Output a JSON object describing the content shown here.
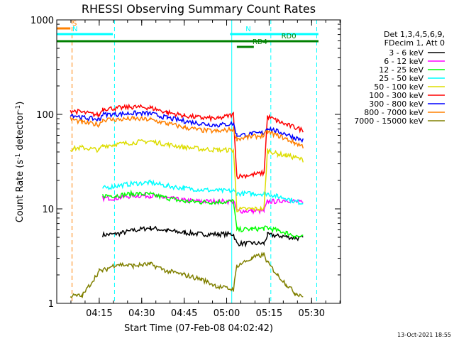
{
  "chart_data": {
    "type": "line",
    "title": "RHESSI Observing Summary Count Rates",
    "xlabel": "Start Time (07-Feb-08 04:02:42)",
    "ylabel_main": "Count Rate (s",
    "ylabel_sup1": "-1",
    "ylabel_mid": " detector",
    "ylabel_sup2": "-1",
    "ylabel_end": ")",
    "yscale": "log",
    "ylim": [
      1,
      1000
    ],
    "xlim": [
      4.0,
      5.67
    ],
    "y_ticks": [
      "1",
      "10",
      "100",
      "1000"
    ],
    "x_ticks": [
      {
        "v": 4.25,
        "label": "04:15"
      },
      {
        "v": 4.5,
        "label": "04:30"
      },
      {
        "v": 4.75,
        "label": "04:45"
      },
      {
        "v": 5.0,
        "label": "05:00"
      },
      {
        "v": 5.25,
        "label": "05:15"
      },
      {
        "v": 5.5,
        "label": "05:30"
      }
    ],
    "legend_header": [
      "Det 1,3,4,5,6,9,",
      "FDecim 1, Att 0"
    ],
    "series": [
      {
        "name": "3 - 6 keV",
        "color": "#000000",
        "values": [
          [
            4.27,
            5.3
          ],
          [
            4.35,
            5.4
          ],
          [
            4.45,
            5.9
          ],
          [
            4.55,
            6.3
          ],
          [
            4.65,
            5.9
          ],
          [
            4.75,
            5.6
          ],
          [
            4.85,
            5.4
          ],
          [
            4.95,
            5.4
          ],
          [
            5.04,
            5.4
          ],
          [
            5.06,
            4.3
          ],
          [
            5.15,
            4.3
          ],
          [
            5.22,
            4.3
          ],
          [
            5.24,
            5.3
          ],
          [
            5.3,
            5.2
          ],
          [
            5.35,
            5.1
          ],
          [
            5.4,
            4.9
          ],
          [
            5.45,
            4.9
          ]
        ]
      },
      {
        "name": "6 - 12 keV",
        "color": "#ff00ff",
        "values": [
          [
            4.27,
            13.0
          ],
          [
            4.35,
            13.0
          ],
          [
            4.45,
            13.8
          ],
          [
            4.55,
            13.8
          ],
          [
            4.65,
            13.0
          ],
          [
            4.75,
            12.3
          ],
          [
            4.85,
            12.0
          ],
          [
            4.95,
            12.0
          ],
          [
            5.04,
            12.0
          ],
          [
            5.06,
            9.5
          ],
          [
            5.15,
            9.5
          ],
          [
            5.22,
            9.5
          ],
          [
            5.24,
            12.0
          ],
          [
            5.3,
            12.0
          ],
          [
            5.35,
            12.5
          ],
          [
            5.4,
            12.0
          ],
          [
            5.45,
            11.5
          ]
        ]
      },
      {
        "name": "12 - 25 keV",
        "color": "#00ff00",
        "values": [
          [
            4.27,
            13.8
          ],
          [
            4.35,
            13.8
          ],
          [
            4.45,
            14.5
          ],
          [
            4.55,
            14.2
          ],
          [
            4.65,
            13.0
          ],
          [
            4.75,
            12.0
          ],
          [
            4.85,
            11.8
          ],
          [
            4.95,
            11.8
          ],
          [
            5.04,
            12.0
          ],
          [
            5.06,
            6.0
          ],
          [
            5.15,
            6.1
          ],
          [
            5.22,
            6.2
          ],
          [
            5.24,
            6.3
          ],
          [
            5.3,
            5.9
          ],
          [
            5.35,
            5.6
          ],
          [
            5.4,
            5.2
          ],
          [
            5.45,
            5.0
          ]
        ]
      },
      {
        "name": "25 - 50 keV",
        "color": "#00ffff",
        "values": [
          [
            4.27,
            16.5
          ],
          [
            4.35,
            17.5
          ],
          [
            4.45,
            18.5
          ],
          [
            4.55,
            19.0
          ],
          [
            4.65,
            17.5
          ],
          [
            4.75,
            16.5
          ],
          [
            4.85,
            16.0
          ],
          [
            4.95,
            15.5
          ],
          [
            5.04,
            15.5
          ],
          [
            5.06,
            14.5
          ],
          [
            5.15,
            14.5
          ],
          [
            5.22,
            14.5
          ],
          [
            5.24,
            14.5
          ],
          [
            5.3,
            13.5
          ],
          [
            5.35,
            13.0
          ],
          [
            5.4,
            12.0
          ],
          [
            5.45,
            11.5
          ]
        ]
      },
      {
        "name": "50 - 100 keV",
        "color": "#dddd00",
        "values": [
          [
            4.08,
            43.0
          ],
          [
            4.15,
            44.5
          ],
          [
            4.25,
            42.0
          ],
          [
            4.27,
            46.5
          ],
          [
            4.35,
            48.0
          ],
          [
            4.45,
            50.5
          ],
          [
            4.55,
            52.0
          ],
          [
            4.65,
            48.0
          ],
          [
            4.75,
            45.0
          ],
          [
            4.85,
            43.0
          ],
          [
            4.95,
            42.0
          ],
          [
            5.04,
            42.0
          ],
          [
            5.06,
            9.8
          ],
          [
            5.15,
            10.0
          ],
          [
            5.22,
            10.0
          ],
          [
            5.24,
            42.0
          ],
          [
            5.3,
            38.0
          ],
          [
            5.35,
            37.0
          ],
          [
            5.4,
            35.0
          ],
          [
            5.45,
            33.0
          ]
        ]
      },
      {
        "name": "100 - 300 keV",
        "color": "#ff0000",
        "values": [
          [
            4.08,
            110.0
          ],
          [
            4.15,
            105.0
          ],
          [
            4.25,
            98.0
          ],
          [
            4.27,
            115.0
          ],
          [
            4.35,
            116.0
          ],
          [
            4.45,
            120.0
          ],
          [
            4.55,
            118.0
          ],
          [
            4.65,
            105.0
          ],
          [
            4.75,
            97.0
          ],
          [
            4.85,
            92.0
          ],
          [
            4.95,
            90.0
          ],
          [
            5.04,
            100.0
          ],
          [
            5.06,
            22.0
          ],
          [
            5.15,
            23.0
          ],
          [
            5.22,
            24.0
          ],
          [
            5.24,
            95.0
          ],
          [
            5.3,
            85.0
          ],
          [
            5.35,
            78.0
          ],
          [
            5.4,
            73.0
          ],
          [
            5.45,
            68.0
          ]
        ]
      },
      {
        "name": "300 - 800 keV",
        "color": "#0000ff",
        "values": [
          [
            4.08,
            100.0
          ],
          [
            4.15,
            93.0
          ],
          [
            4.25,
            88.0
          ],
          [
            4.27,
            100.0
          ],
          [
            4.35,
            100.0
          ],
          [
            4.45,
            103.0
          ],
          [
            4.55,
            102.0
          ],
          [
            4.65,
            92.0
          ],
          [
            4.75,
            85.0
          ],
          [
            4.85,
            80.0
          ],
          [
            4.95,
            77.0
          ],
          [
            5.04,
            80.0
          ],
          [
            5.06,
            60.0
          ],
          [
            5.15,
            62.0
          ],
          [
            5.22,
            64.0
          ],
          [
            5.24,
            72.0
          ],
          [
            5.3,
            66.0
          ],
          [
            5.35,
            62.0
          ],
          [
            5.4,
            57.0
          ],
          [
            5.45,
            53.0
          ]
        ]
      },
      {
        "name": "800 - 7000 keV",
        "color": "#ff8000",
        "values": [
          [
            4.08,
            90.0
          ],
          [
            4.15,
            82.0
          ],
          [
            4.25,
            78.0
          ],
          [
            4.27,
            88.0
          ],
          [
            4.35,
            88.0
          ],
          [
            4.45,
            90.0
          ],
          [
            4.55,
            88.0
          ],
          [
            4.65,
            80.0
          ],
          [
            4.75,
            73.0
          ],
          [
            4.85,
            68.0
          ],
          [
            4.95,
            66.0
          ],
          [
            5.04,
            70.0
          ],
          [
            5.06,
            55.0
          ],
          [
            5.15,
            58.0
          ],
          [
            5.22,
            60.0
          ],
          [
            5.24,
            65.0
          ],
          [
            5.3,
            60.0
          ],
          [
            5.35,
            55.0
          ],
          [
            5.4,
            50.0
          ],
          [
            5.45,
            46.0
          ]
        ]
      },
      {
        "name": "7000 - 15000 keV",
        "color": "#808000",
        "values": [
          [
            4.08,
            1.2
          ],
          [
            4.15,
            1.2
          ],
          [
            4.25,
            2.2
          ],
          [
            4.27,
            2.2
          ],
          [
            4.35,
            2.6
          ],
          [
            4.45,
            2.5
          ],
          [
            4.55,
            2.6
          ],
          [
            4.65,
            2.2
          ],
          [
            4.75,
            2.0
          ],
          [
            4.85,
            1.8
          ],
          [
            4.95,
            1.5
          ],
          [
            5.04,
            1.4
          ],
          [
            5.06,
            2.5
          ],
          [
            5.15,
            3.0
          ],
          [
            5.22,
            3.3
          ],
          [
            5.24,
            2.7
          ],
          [
            5.3,
            2.0
          ],
          [
            5.35,
            1.6
          ],
          [
            5.4,
            1.3
          ],
          [
            5.45,
            1.2
          ]
        ]
      }
    ],
    "flag_bars": [
      {
        "label": "S",
        "color": "#ff8000",
        "x0": 4.0,
        "x1": 4.08,
        "y": 40
      },
      {
        "label": "N",
        "color": "#00ffff",
        "x0": 4.0,
        "x1": 4.33,
        "y": 48
      },
      {
        "label": "N",
        "color": "#00ffff",
        "x0": 5.02,
        "x1": 5.54,
        "y": 48
      },
      {
        "label": "",
        "color": "#008000",
        "x0": 4.0,
        "x1": 5.54,
        "y": 58
      },
      {
        "label": "RD0",
        "color": "#008000",
        "x0": 5.23,
        "x1": 5.54,
        "y": 58
      },
      {
        "label": "RD4",
        "color": "#008000",
        "x0": 5.06,
        "x1": 5.16,
        "y": 66
      }
    ],
    "vlines": [
      {
        "x": 4.09,
        "color": "#ff8000",
        "style": "dashed"
      },
      {
        "x": 4.34,
        "color": "#00ffff",
        "style": "dashed"
      },
      {
        "x": 5.03,
        "color": "#00ffff",
        "style": "solid"
      },
      {
        "x": 5.26,
        "color": "#00ffff",
        "style": "dashed"
      },
      {
        "x": 5.53,
        "color": "#00ffff",
        "style": "dashed"
      }
    ],
    "footer_date": "13-Oct-2021 18:55"
  }
}
